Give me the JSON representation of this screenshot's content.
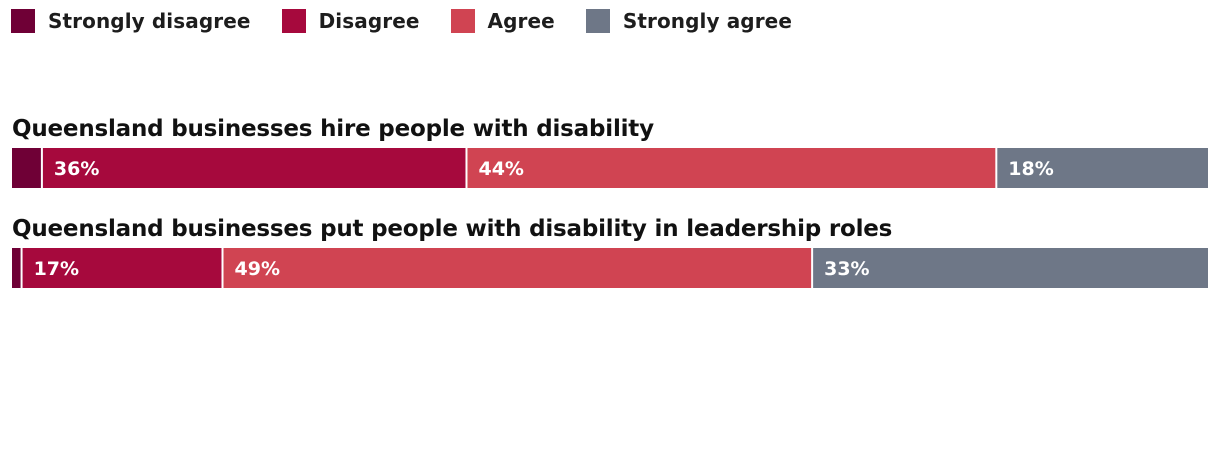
{
  "chart_data": {
    "type": "bar",
    "orientation": "horizontal",
    "stacked": "100%",
    "legend_position": "top-left",
    "legend": [
      {
        "name": "Strongly disagree",
        "color": "#6f0036"
      },
      {
        "name": "Disagree",
        "color": "#a6093d"
      },
      {
        "name": "Agree",
        "color": "#d04452"
      },
      {
        "name": "Strongly agree",
        "color": "#6e7787"
      }
    ],
    "rows": [
      {
        "title": "Queensland businesses hire people with disability",
        "segments": [
          {
            "series": "Strongly disagree",
            "value": 2.5,
            "label": ""
          },
          {
            "series": "Disagree",
            "value": 35.5,
            "label": "36%"
          },
          {
            "series": "Agree",
            "value": 44.3,
            "label": "44%"
          },
          {
            "series": "Strongly agree",
            "value": 17.7,
            "label": "18%"
          }
        ]
      },
      {
        "title": "Queensland businesses put people with disability in leadership roles",
        "segments": [
          {
            "series": "Strongly disagree",
            "value": 0.8,
            "label": ""
          },
          {
            "series": "Disagree",
            "value": 16.8,
            "label": "17%"
          },
          {
            "series": "Agree",
            "value": 49.3,
            "label": "49%"
          },
          {
            "series": "Strongly agree",
            "value": 33.1,
            "label": "33%"
          }
        ]
      }
    ]
  }
}
